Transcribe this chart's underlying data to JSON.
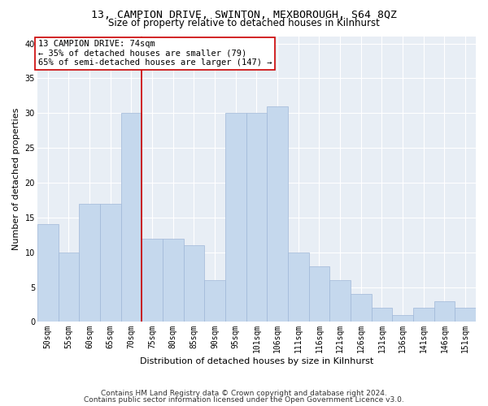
{
  "title_line1": "13, CAMPION DRIVE, SWINTON, MEXBOROUGH, S64 8QZ",
  "title_line2": "Size of property relative to detached houses in Kilnhurst",
  "xlabel": "Distribution of detached houses by size in Kilnhurst",
  "ylabel": "Number of detached properties",
  "categories": [
    "50sqm",
    "55sqm",
    "60sqm",
    "65sqm",
    "70sqm",
    "75sqm",
    "80sqm",
    "85sqm",
    "90sqm",
    "95sqm",
    "101sqm",
    "106sqm",
    "111sqm",
    "116sqm",
    "121sqm",
    "126sqm",
    "131sqm",
    "136sqm",
    "141sqm",
    "146sqm",
    "151sqm"
  ],
  "values": [
    14,
    10,
    17,
    17,
    30,
    12,
    12,
    11,
    6,
    30,
    30,
    31,
    10,
    8,
    6,
    4,
    2,
    1,
    2,
    3,
    2
  ],
  "bar_color": "#c5d8ed",
  "bar_edge_color": "#a0b8d8",
  "bar_width": 1.0,
  "vline_x": 4.5,
  "vline_color": "#cc0000",
  "ylim": [
    0,
    41
  ],
  "yticks": [
    0,
    5,
    10,
    15,
    20,
    25,
    30,
    35,
    40
  ],
  "annotation_text": "13 CAMPION DRIVE: 74sqm\n← 35% of detached houses are smaller (79)\n65% of semi-detached houses are larger (147) →",
  "annotation_box_color": "#ffffff",
  "annotation_box_edge_color": "#cc0000",
  "footnote_line1": "Contains HM Land Registry data © Crown copyright and database right 2024.",
  "footnote_line2": "Contains public sector information licensed under the Open Government Licence v3.0.",
  "background_color": "#e8eef5",
  "grid_color": "#ffffff",
  "title_fontsize": 9.5,
  "subtitle_fontsize": 8.5,
  "axis_label_fontsize": 8,
  "tick_fontsize": 7,
  "annotation_fontsize": 7.5,
  "footnote_fontsize": 6.5
}
